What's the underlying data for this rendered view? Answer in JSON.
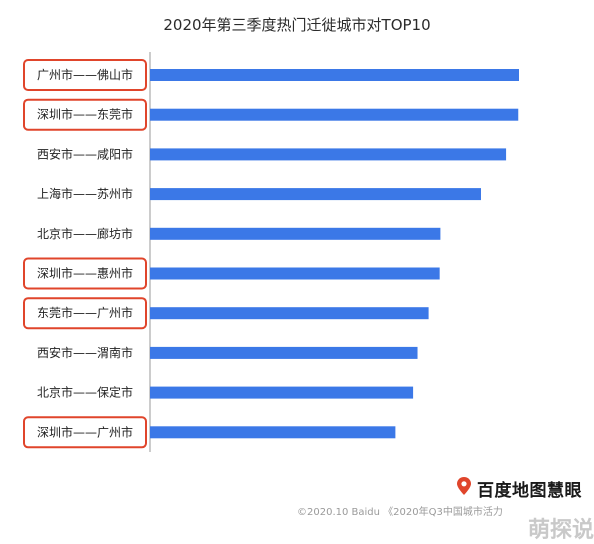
{
  "page": {
    "logo_text": "百度地图慧眼",
    "footer": "©2020.10 Baidu 《2020年Q3中国城市活力",
    "corner_watermark": "萌探说"
  },
  "colors": {
    "bar": "#3b78e7",
    "highlight_box": "#e0452b",
    "axis": "#9a9a9a",
    "pin": "#e0452b"
  },
  "chart_data": {
    "type": "bar",
    "orientation": "horizontal",
    "title": "2020年第三季度热门迁徙城市对TOP10",
    "xlabel": "",
    "ylabel": "",
    "categories": [
      "广州市——佛山市",
      "深圳市——东莞市",
      "西安市——咸阳市",
      "上海市——苏州市",
      "北京市——廊坊市",
      "深圳市——惠州市",
      "东莞市——广州市",
      "西安市——渭南市",
      "北京市——保定市",
      "深圳市——广州市"
    ],
    "values": [
      100,
      99.8,
      96.5,
      89.7,
      78.7,
      78.5,
      75.5,
      72.5,
      71.3,
      66.5
    ],
    "xlim": [
      0,
      100
    ],
    "highlighted": [
      true,
      true,
      false,
      false,
      false,
      true,
      true,
      false,
      false,
      true
    ],
    "grid": false,
    "legend": "none"
  }
}
